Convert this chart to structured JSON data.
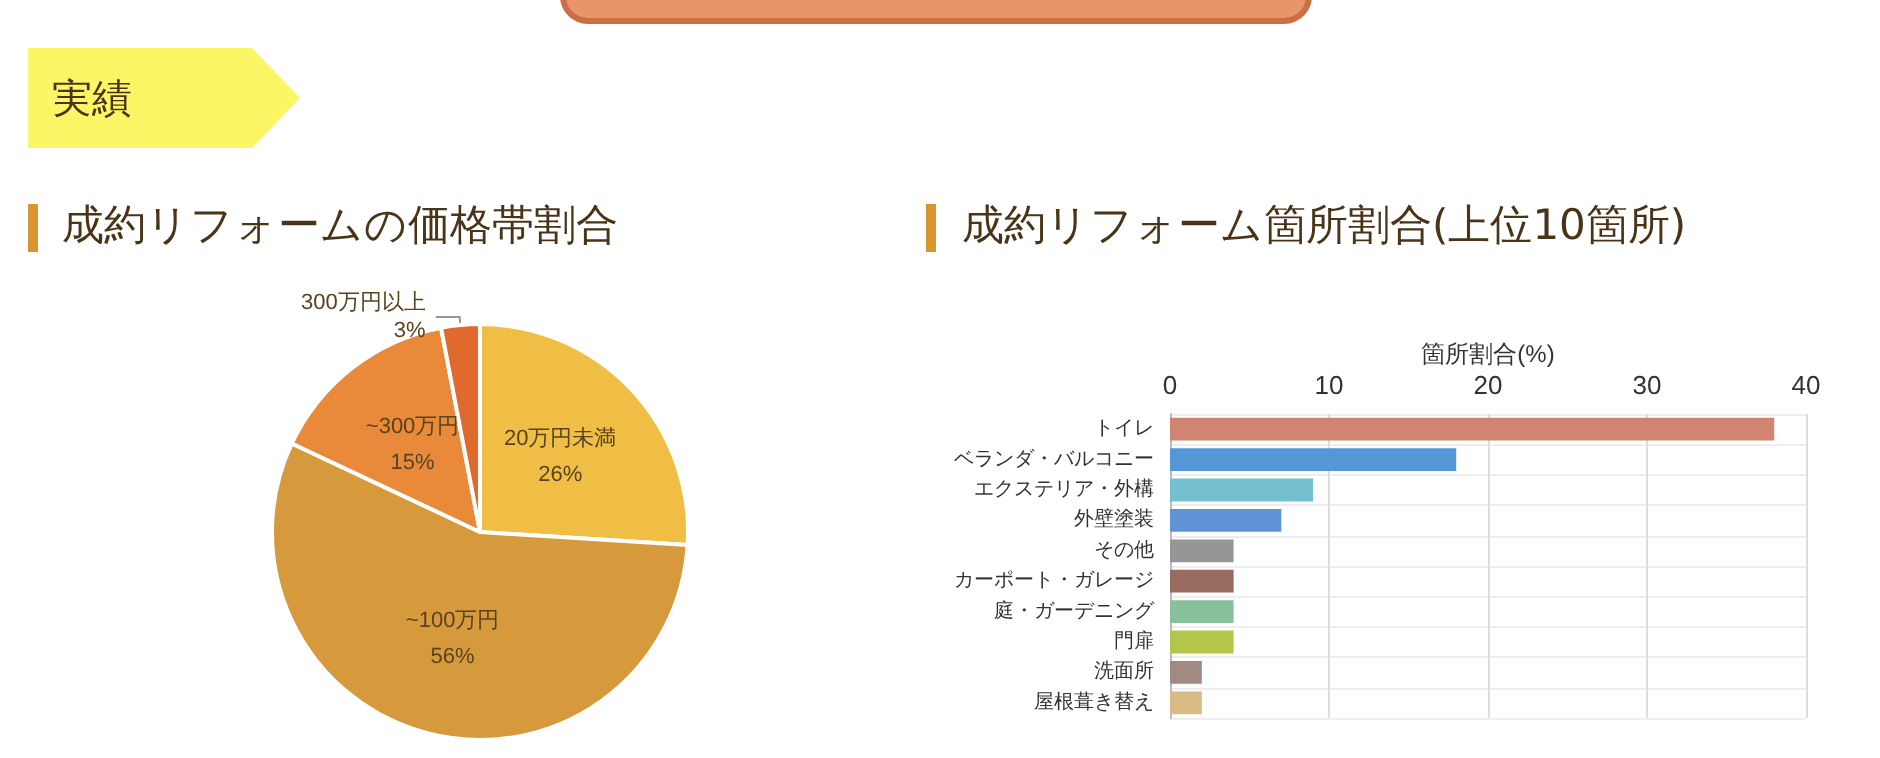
{
  "chart_data": [
    {
      "type": "pie",
      "title": "成約リフォームの価格帯割合",
      "annotations": [
        "実績"
      ],
      "categories": [
        "20万円未満",
        "~100万円",
        "~300万円",
        "300万円以上"
      ],
      "values": [
        26,
        56,
        15,
        3
      ],
      "value_labels": [
        "26%",
        "56%",
        "15%",
        "3%"
      ],
      "colors": [
        "#f0be45",
        "#d69a3c",
        "#e98a3a",
        "#e06a2d"
      ]
    },
    {
      "type": "bar",
      "orientation": "horizontal",
      "title": "成約リフォーム箇所割合(上位10箇所)",
      "xlabel": "箇所割合(%)",
      "categories": [
        "トイレ",
        "ベランダ・バルコニー",
        "エクステリア・外構",
        "外壁塗装",
        "その他",
        "カーポート・ガレージ",
        "庭・ガーデニング",
        "門扉",
        "洗面所",
        "屋根葺き替え"
      ],
      "values": [
        38,
        18,
        9,
        7,
        4,
        4,
        4,
        4,
        2,
        2
      ],
      "colors": [
        "#d08472",
        "#5496d6",
        "#74bfd0",
        "#5e93d5",
        "#969696",
        "#976b60",
        "#8abf9e",
        "#b4c649",
        "#a08a82",
        "#d9bb86"
      ],
      "xlim": [
        0,
        40
      ],
      "xticks": [
        0,
        10,
        20,
        30,
        40
      ],
      "grid": true
    }
  ]
}
